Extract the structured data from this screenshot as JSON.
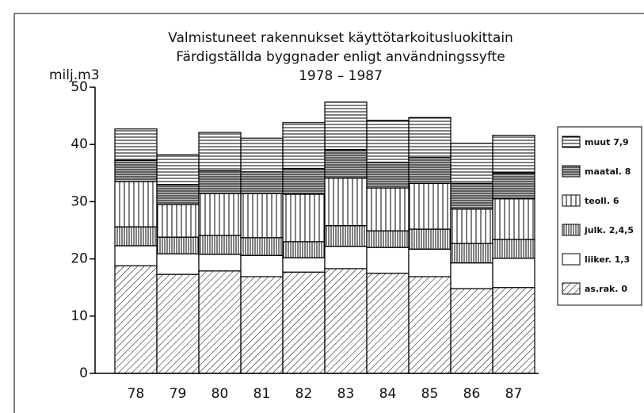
{
  "chart_data": {
    "type": "bar",
    "stacked": true,
    "title": [
      "Valmistuneet rakennukset käyttötarkoitusluokittain",
      "Färdigställda byggnader enligt användningssyfte",
      "1978 – 1987"
    ],
    "y_label": "milj.m3",
    "categories": [
      "78",
      "79",
      "80",
      "81",
      "82",
      "83",
      "84",
      "85",
      "86",
      "87"
    ],
    "series": [
      {
        "name": "as.rak. 0",
        "color": "#000000",
        "pattern": "diagonal",
        "values": [
          18.8,
          17.3,
          17.9,
          16.9,
          17.7,
          18.3,
          17.5,
          16.9,
          14.8,
          15.0
        ]
      },
      {
        "name": "liiker. 1,3",
        "color": "#000000",
        "pattern": "none",
        "values": [
          3.5,
          3.6,
          2.9,
          3.7,
          2.5,
          3.9,
          4.5,
          4.8,
          4.5,
          5.1
        ]
      },
      {
        "name": "julk. 2,4,5",
        "color": "#000000",
        "pattern": "vertical-dense",
        "values": [
          3.3,
          2.9,
          3.3,
          3.1,
          2.8,
          3.6,
          2.9,
          3.5,
          3.4,
          3.3
        ]
      },
      {
        "name": "teoll. 6",
        "color": "#000000",
        "pattern": "vertical",
        "values": [
          7.9,
          5.7,
          7.3,
          7.7,
          8.3,
          8.3,
          7.5,
          8.0,
          6.0,
          7.1
        ]
      },
      {
        "name": "maatal. 8",
        "color": "#000000",
        "pattern": "horizontal-dense",
        "values": [
          3.7,
          3.5,
          4.0,
          3.8,
          4.5,
          5.0,
          4.5,
          4.5,
          4.5,
          4.5
        ]
      },
      {
        "name": "muut 7,9",
        "color": "#000000",
        "pattern": "horizontal",
        "values": [
          5.5,
          5.2,
          6.7,
          5.9,
          8.0,
          8.3,
          7.3,
          7.0,
          7.0,
          6.6
        ]
      }
    ],
    "ylim": [
      0,
      50
    ],
    "yticks": [
      0,
      10,
      20,
      30,
      40,
      50
    ],
    "grid": false,
    "legend": "right"
  }
}
